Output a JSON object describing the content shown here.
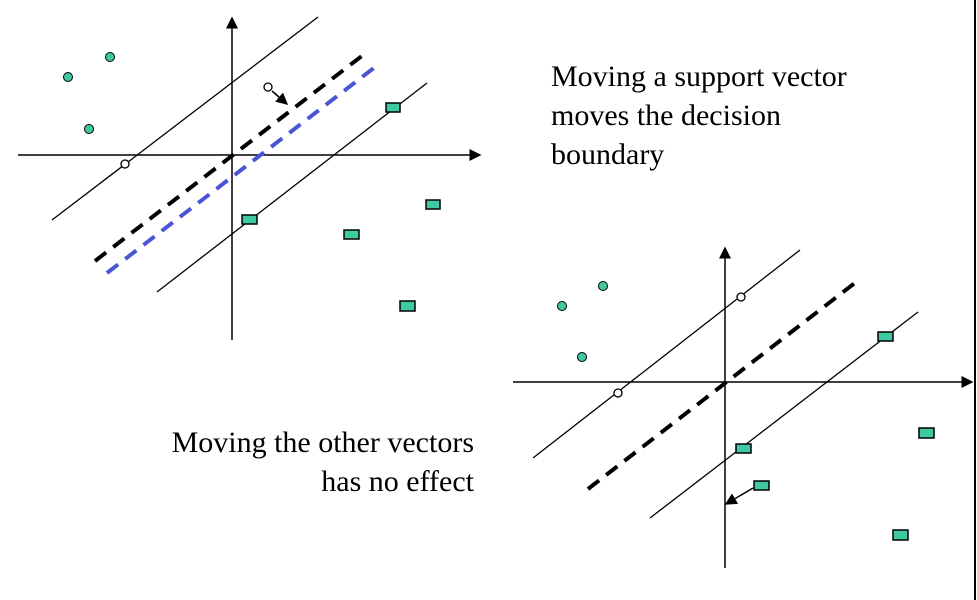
{
  "captions": {
    "support_vector": [
      "Moving a support vector",
      "moves the decision",
      "boundary"
    ],
    "other_vectors": [
      "Moving the other vectors",
      "has no effect"
    ]
  },
  "colors": {
    "axis": "#000000",
    "margin_line": "#000000",
    "decision_boundary": "#000000",
    "moved_boundary": "#4a55d6",
    "positive_point_fill": "#3fc9a3",
    "negative_point_fill": "#3fc9a3",
    "support_vector_fill": "#ffffff",
    "border": "#000000"
  }
}
